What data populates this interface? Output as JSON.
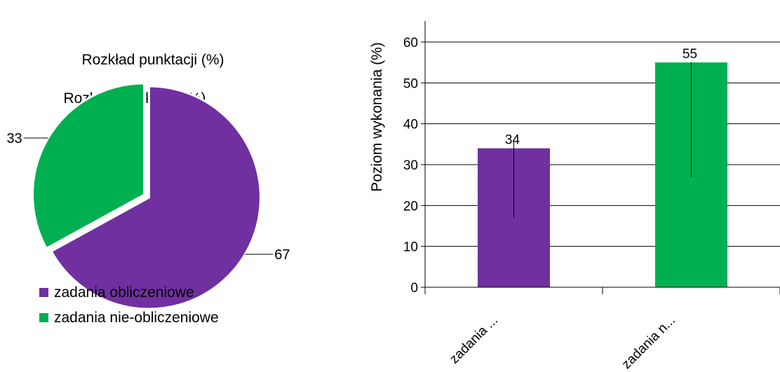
{
  "chart_data": [
    {
      "type": "pie",
      "title": "Rozkład punktacji (%)",
      "title_ghost": "Rozkład punktacji (%)",
      "slices": [
        {
          "label": "zadania obliczeniowe",
          "value": 67,
          "color": "#7030A0"
        },
        {
          "label": "zadania nie-obliczeniowe",
          "value": 33,
          "color": "#00B050"
        }
      ],
      "legend": {
        "placement": "bottom-left"
      }
    },
    {
      "type": "bar",
      "ylabel": "Poziom wykonania (%)",
      "ylim": [
        0,
        60
      ],
      "yticks": [
        0,
        10,
        20,
        30,
        40,
        50,
        60
      ],
      "grid": true,
      "categories": [
        "zadania obliczeniowe",
        "zadania nie-obliczeniowe"
      ],
      "category_tick_labels": [
        "zadania ...",
        "zadania n..."
      ],
      "values": [
        34,
        55
      ],
      "colors": [
        "#7030A0",
        "#00B050"
      ],
      "error_bars": [
        [
          17,
          36
        ],
        [
          27,
          55
        ]
      ]
    }
  ]
}
